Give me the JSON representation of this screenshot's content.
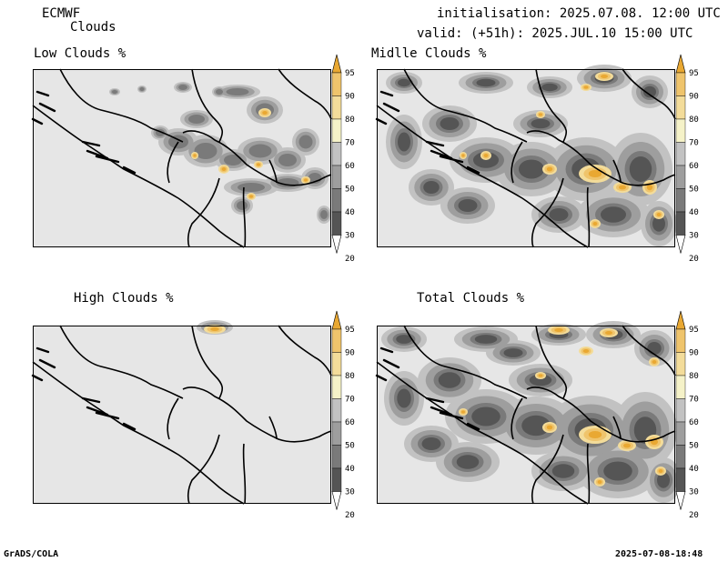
{
  "header": {
    "model": "ECMWF",
    "product": "Clouds",
    "init": "initialisation: 2025.07.08. 12:00 UTC",
    "valid": "valid: (+51h): 2025.JUL.10 15:00 UTC"
  },
  "panels": [
    {
      "title": "Low Clouds %"
    },
    {
      "title": "Midlle Clouds %"
    },
    {
      "title": "High Clouds %"
    },
    {
      "title": "Total Clouds %"
    }
  ],
  "colorbar": {
    "labels": [
      "20",
      "30",
      "40",
      "50",
      "60",
      "70",
      "80",
      "90",
      "95"
    ],
    "colors": [
      "#ffffff",
      "#555555",
      "#7a7a7a",
      "#9e9e9e",
      "#c2c2c2",
      "#f5f2c8",
      "#f3dc9a",
      "#efc46c",
      "#e9a832"
    ]
  },
  "footer": {
    "left": "GrADS/COLA",
    "right": "2025-07-08-18:48"
  },
  "colors": {
    "map_bg": "#e6e6e6",
    "border": "#000000"
  }
}
